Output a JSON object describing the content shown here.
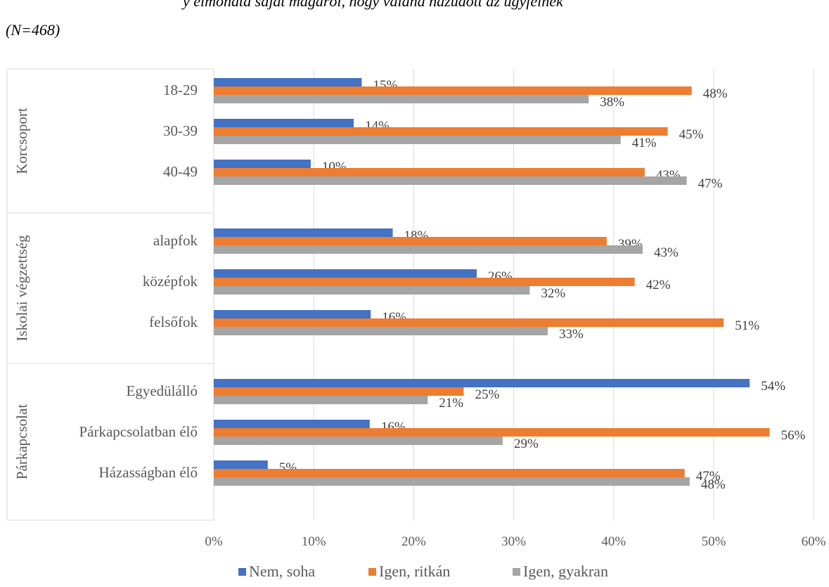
{
  "title_lines": [
    "y elmondta saját magáról, hogy valaha hazudott az ügyfélnek",
    "(N=468)"
  ],
  "chart_data": {
    "type": "bar",
    "orientation": "horizontal",
    "grouping": "grouped",
    "title": "",
    "xlabel": "",
    "ylabel": "",
    "xlim": [
      0,
      60
    ],
    "x_tick_labels": [
      "0%",
      "10%",
      "20%",
      "30%",
      "40%",
      "50%",
      "60%"
    ],
    "grid": "vertical",
    "legend_position": "bottom",
    "groups": [
      {
        "name": "Korcsoport",
        "categories": [
          "18-29",
          "30-39",
          "40-49"
        ]
      },
      {
        "name": "Iskolai végzettség",
        "categories": [
          "alapfok",
          "középfok",
          "felsőfok"
        ]
      },
      {
        "name": "Párkapcsolat",
        "categories": [
          "Egyedülálló",
          "Párkapcsolatban élő",
          "Házasságban élő"
        ]
      }
    ],
    "categories": [
      "18-29",
      "30-39",
      "40-49",
      "alapfok",
      "középfok",
      "felsőfok",
      "Egyedülálló",
      "Párkapcsolatban élő",
      "Házasságban élő"
    ],
    "series": [
      {
        "name": "Nem, soha",
        "color": "#4472C4",
        "values": [
          14.8,
          14,
          9.7,
          17.9,
          26.3,
          15.7,
          53.6,
          15.6,
          5.4
        ],
        "labels": [
          "15%",
          "14%",
          "10%",
          "18%",
          "26%",
          "16%",
          "54%",
          "16%",
          "5%"
        ]
      },
      {
        "name": "Igen, ritkán",
        "color": "#ED7D31",
        "values": [
          47.8,
          45.4,
          43.1,
          39.3,
          42.1,
          51,
          25,
          55.6,
          47.1
        ],
        "labels": [
          "48%",
          "45%",
          "43%",
          "39%",
          "42%",
          "51%",
          "25%",
          "56%",
          "47%"
        ]
      },
      {
        "name": "Igen, gyakran",
        "color": "#A5A5A5",
        "values": [
          37.5,
          40.7,
          47.3,
          42.9,
          31.6,
          33.4,
          21.4,
          28.9,
          47.6
        ],
        "labels": [
          "38%",
          "41%",
          "47%",
          "43%",
          "32%",
          "33%",
          "21%",
          "29%",
          "48%"
        ]
      }
    ]
  }
}
